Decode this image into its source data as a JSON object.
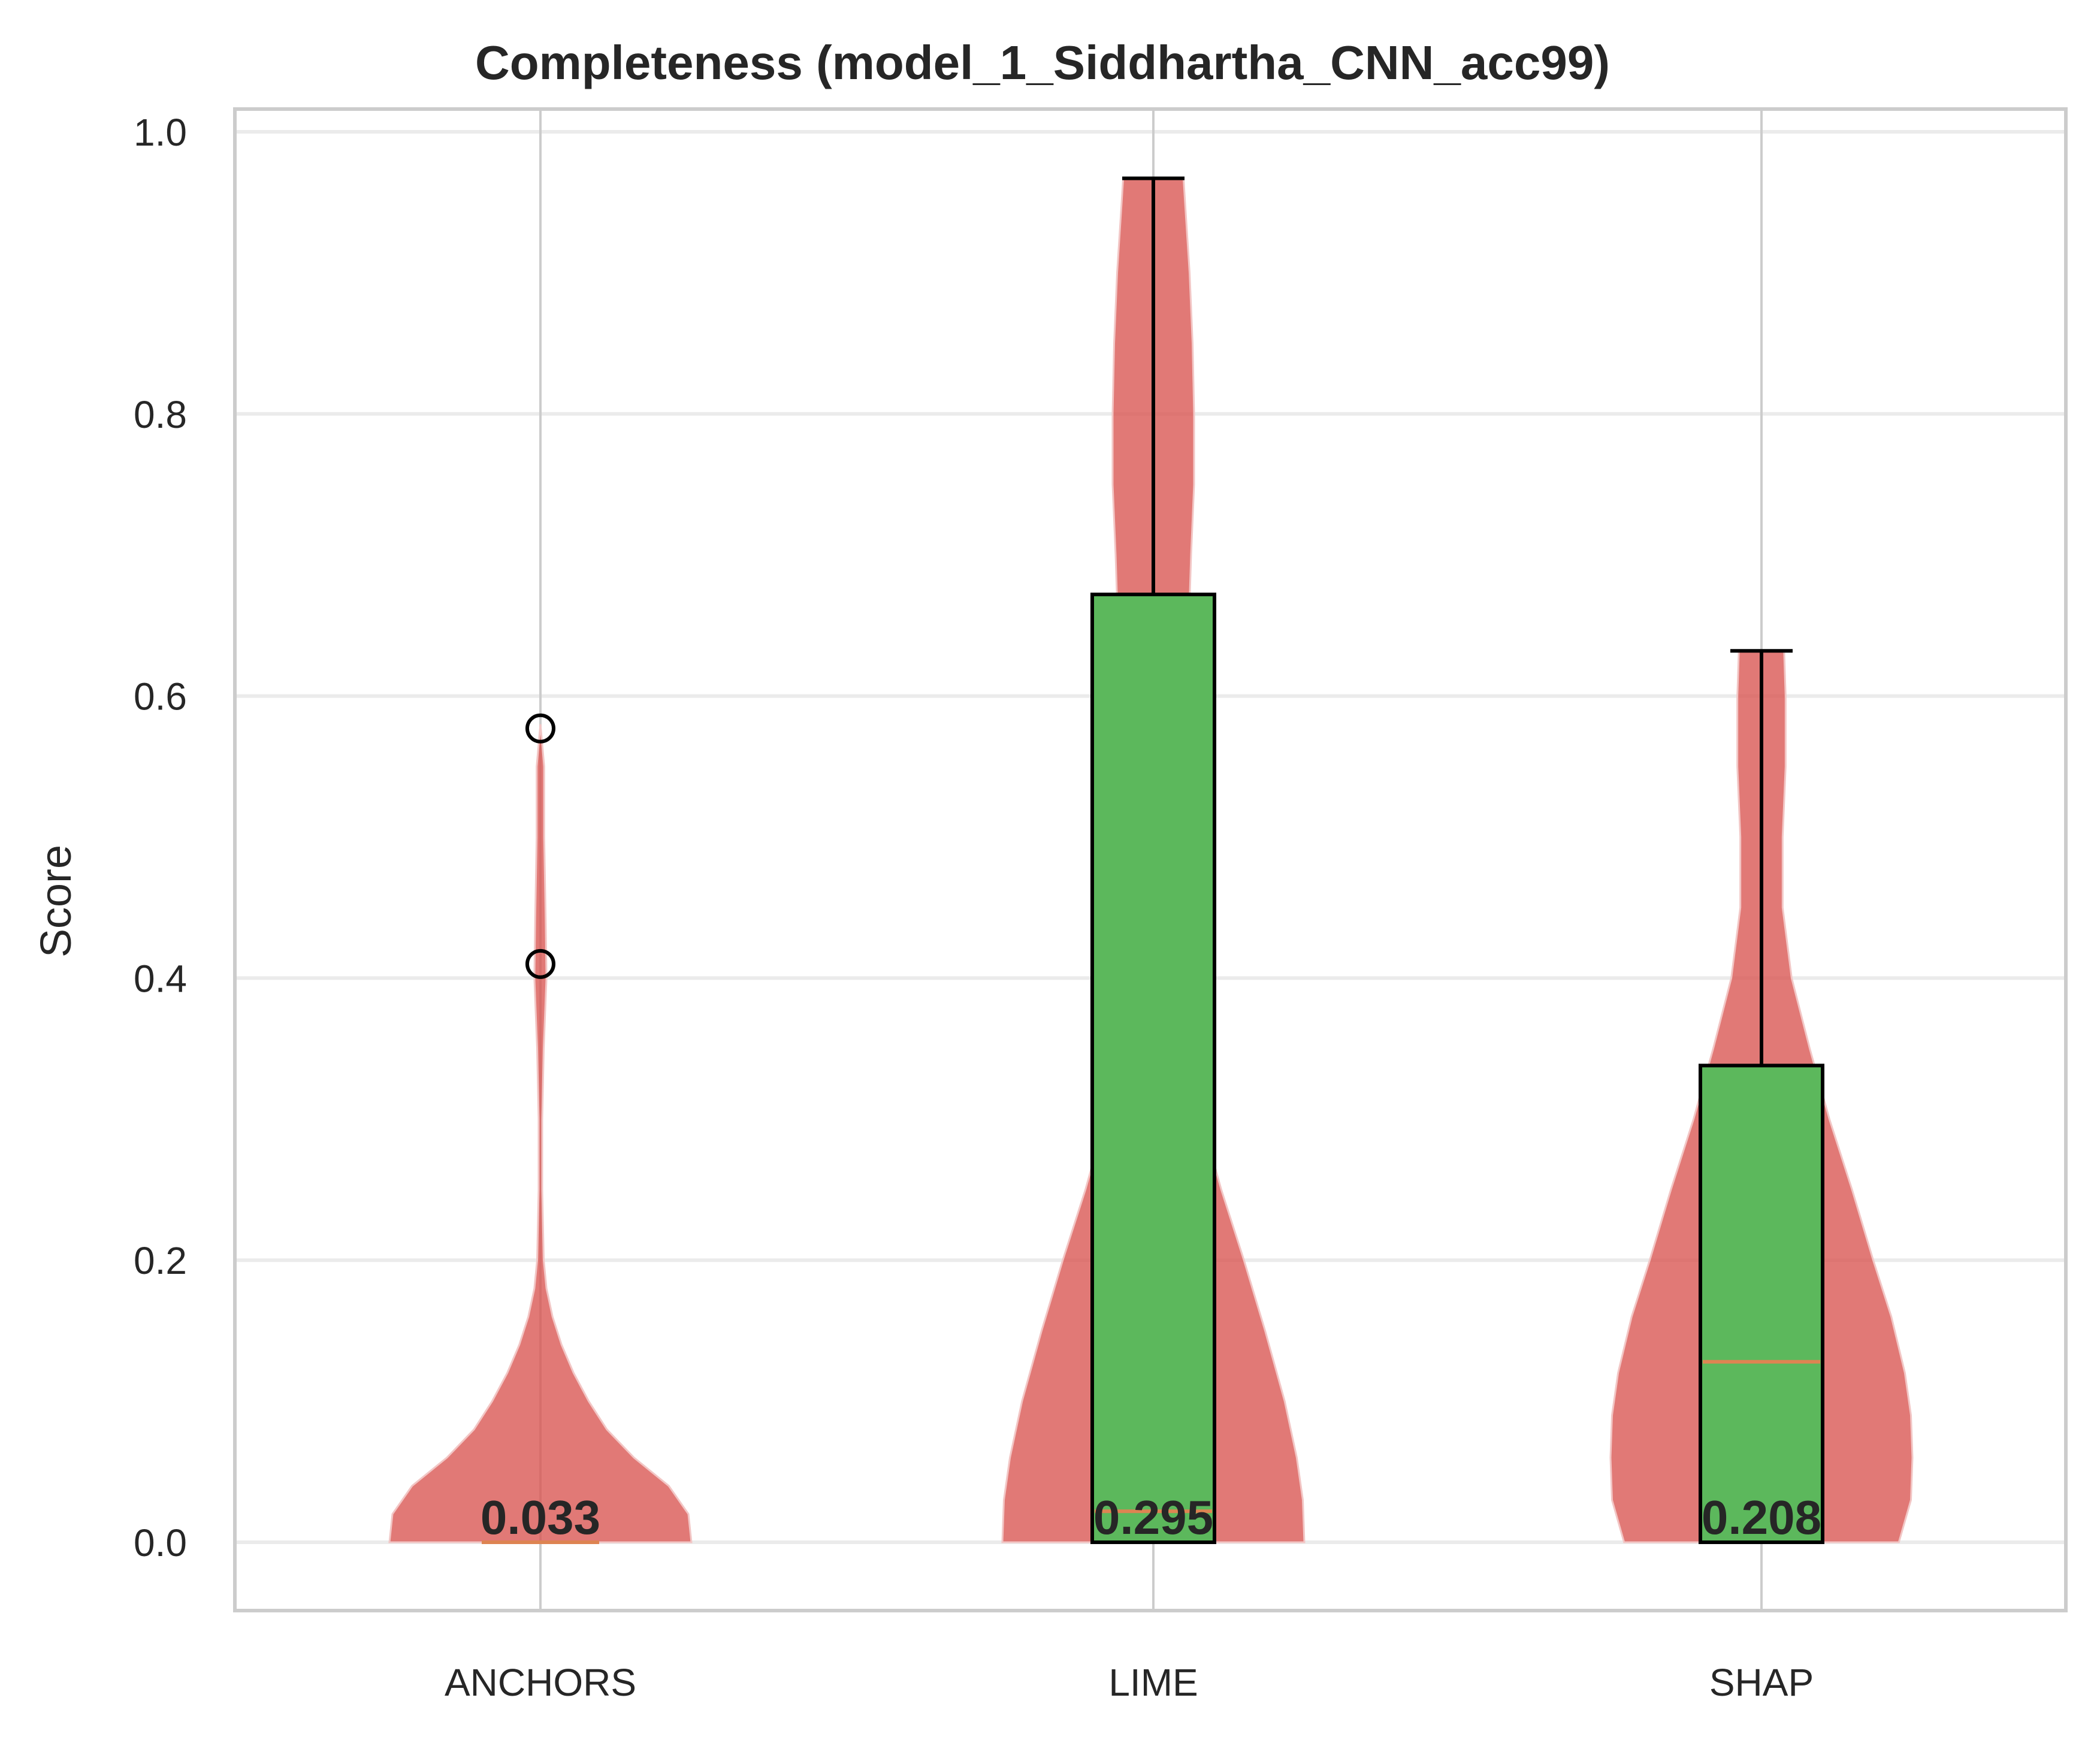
{
  "chart_data": {
    "type": "violin",
    "title": "Completeness (model_1_Siddhartha_CNN_acc99)",
    "xlabel": "",
    "ylabel": "Score",
    "ylim": [
      -0.09,
      1.02
    ],
    "yticks": [
      "0.0",
      "0.2",
      "0.4",
      "0.6",
      "0.8",
      "1.0"
    ],
    "ytick_values": [
      0.0,
      0.2,
      0.4,
      0.6,
      0.8,
      1.0
    ],
    "grid": true,
    "categories": [
      "ANCHORS",
      "LIME",
      "SHAP"
    ],
    "colors": {
      "violin": "#d9534f",
      "box": "#5cb85c",
      "median": "#dd8452",
      "whisker": "#000000",
      "grid": "#ebebeb",
      "frame": "#cccccc"
    },
    "series": [
      {
        "category": "ANCHORS",
        "mean_label": "0.033",
        "q1": 0.0,
        "median": 0.0,
        "q3": 0.0,
        "whisker_low": 0.0,
        "whisker_high": 0.0,
        "outliers": [
          0.577,
          0.41
        ],
        "violin_range": [
          0.0,
          0.58
        ],
        "violin_profile": [
          [
            0.0,
            1.0
          ],
          [
            0.02,
            0.98
          ],
          [
            0.04,
            0.85
          ],
          [
            0.06,
            0.62
          ],
          [
            0.08,
            0.44
          ],
          [
            0.1,
            0.32
          ],
          [
            0.12,
            0.22
          ],
          [
            0.14,
            0.14
          ],
          [
            0.16,
            0.08
          ],
          [
            0.18,
            0.04
          ],
          [
            0.2,
            0.022
          ],
          [
            0.25,
            0.012
          ],
          [
            0.3,
            0.012
          ],
          [
            0.35,
            0.022
          ],
          [
            0.4,
            0.04
          ],
          [
            0.44,
            0.035
          ],
          [
            0.5,
            0.025
          ],
          [
            0.55,
            0.025
          ],
          [
            0.58,
            0.0
          ]
        ]
      },
      {
        "category": "LIME",
        "mean_label": "0.295",
        "q1": 0.0,
        "median": 0.022,
        "q3": 0.672,
        "whisker_low": 0.0,
        "whisker_high": 0.967,
        "outliers": [],
        "violin_range": [
          0.0,
          0.967
        ],
        "violin_profile": [
          [
            0.0,
            1.0
          ],
          [
            0.03,
            0.99
          ],
          [
            0.06,
            0.95
          ],
          [
            0.1,
            0.87
          ],
          [
            0.15,
            0.74
          ],
          [
            0.2,
            0.6
          ],
          [
            0.25,
            0.45
          ],
          [
            0.3,
            0.32
          ],
          [
            0.35,
            0.22
          ],
          [
            0.4,
            0.2
          ],
          [
            0.5,
            0.2
          ],
          [
            0.6,
            0.22
          ],
          [
            0.7,
            0.25
          ],
          [
            0.75,
            0.27
          ],
          [
            0.8,
            0.27
          ],
          [
            0.85,
            0.26
          ],
          [
            0.9,
            0.24
          ],
          [
            0.95,
            0.21
          ],
          [
            0.967,
            0.2
          ]
        ]
      },
      {
        "category": "SHAP",
        "mean_label": "0.208",
        "q1": 0.0,
        "median": 0.128,
        "q3": 0.338,
        "whisker_low": 0.0,
        "whisker_high": 0.632,
        "outliers": [],
        "violin_range": [
          0.0,
          0.632
        ],
        "violin_profile": [
          [
            0.0,
            0.91
          ],
          [
            0.03,
            0.99
          ],
          [
            0.06,
            1.0
          ],
          [
            0.09,
            0.99
          ],
          [
            0.12,
            0.95
          ],
          [
            0.16,
            0.86
          ],
          [
            0.2,
            0.74
          ],
          [
            0.25,
            0.6
          ],
          [
            0.3,
            0.45
          ],
          [
            0.35,
            0.32
          ],
          [
            0.4,
            0.2
          ],
          [
            0.45,
            0.14
          ],
          [
            0.5,
            0.14
          ],
          [
            0.55,
            0.16
          ],
          [
            0.6,
            0.16
          ],
          [
            0.632,
            0.15
          ]
        ]
      }
    ]
  }
}
